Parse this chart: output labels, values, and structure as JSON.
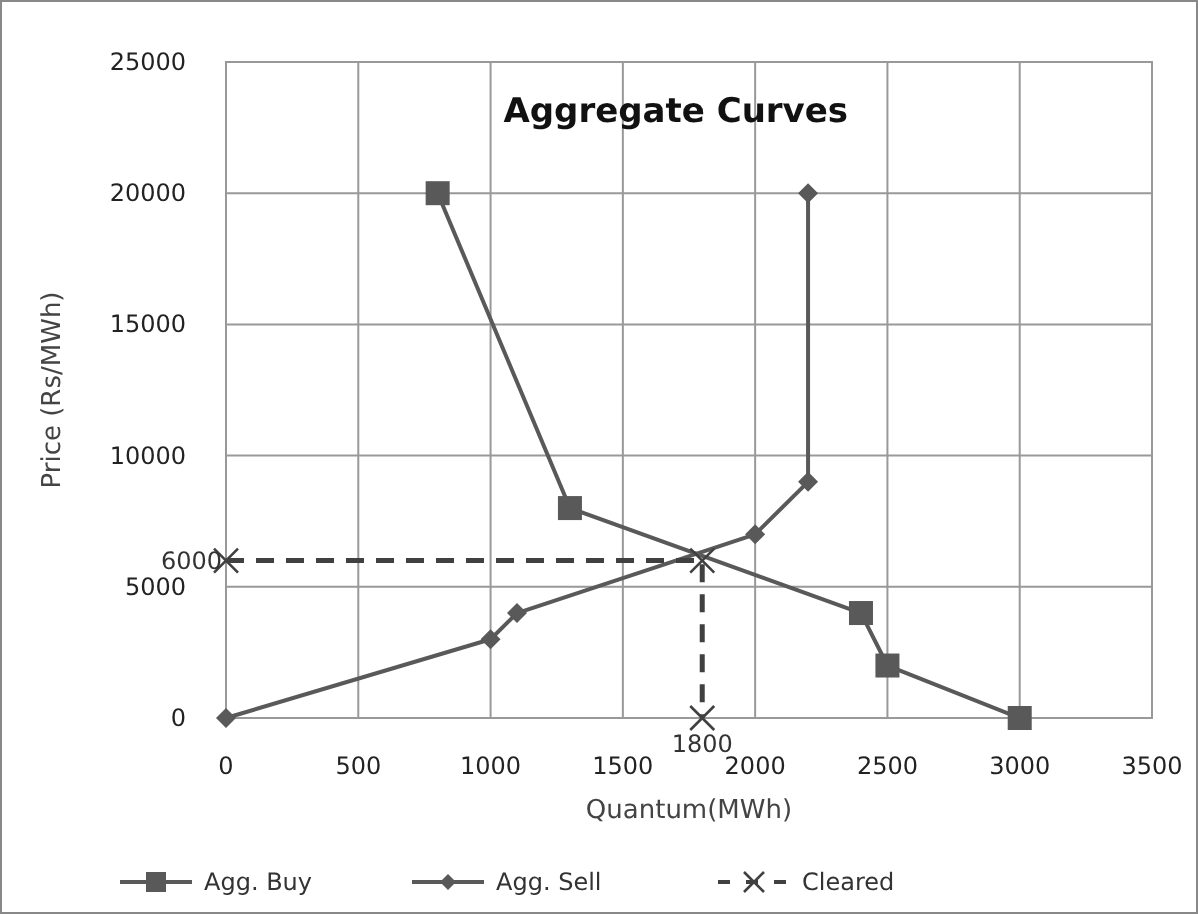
{
  "chart_data": {
    "type": "line",
    "title": "Aggregate Curves",
    "xlabel": "Quantum(MWh)",
    "ylabel": "Price (Rs/MWh)",
    "xlim": [
      0,
      3500
    ],
    "xticks": [
      0,
      500,
      1000,
      1500,
      2000,
      2500,
      3000,
      3500
    ],
    "ylim": [
      0,
      25000
    ],
    "yticks": [
      0,
      5000,
      10000,
      15000,
      20000,
      25000
    ],
    "grid": true,
    "legend": "bottom",
    "series": [
      {
        "name": "Agg. Buy",
        "color": "#595959",
        "marker": "square",
        "line_style": "solid",
        "x": [
          800,
          1300,
          2400,
          2500,
          3000
        ],
        "values": [
          20000,
          8000,
          4000,
          2000,
          0
        ]
      },
      {
        "name": "Agg. Sell",
        "color": "#595959",
        "marker": "diamond",
        "line_style": "solid",
        "x": [
          0,
          1000,
          1100,
          2000,
          2200,
          2200
        ],
        "values": [
          0,
          3000,
          4000,
          7000,
          9000,
          20000
        ]
      },
      {
        "name": "Cleared",
        "color": "#404040",
        "marker": "cross",
        "line_style": "dashed",
        "x": [
          0,
          1800,
          1800
        ],
        "values": [
          6000,
          6000,
          0
        ]
      }
    ],
    "annotations": [
      {
        "text": "6000",
        "x": 0,
        "y": 6000
      },
      {
        "text": "1800",
        "x": 1800,
        "y": 0
      }
    ]
  }
}
